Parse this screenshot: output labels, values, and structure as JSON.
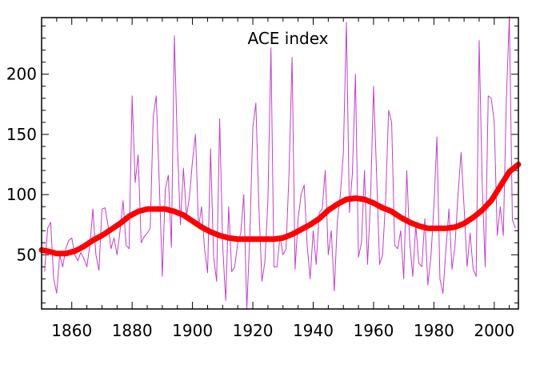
{
  "chart_data": {
    "type": "line",
    "title": "ACE index",
    "xlabel": "",
    "ylabel": "",
    "xlim": [
      1850,
      2008
    ],
    "ylim": [
      5,
      247
    ],
    "grid": false,
    "xticks": [
      1860,
      1880,
      1900,
      1920,
      1940,
      1960,
      1980,
      2000
    ],
    "xtick_labels": [
      "1860",
      "1880",
      "1900",
      "1920",
      "1940",
      "1960",
      "1980",
      "2000"
    ],
    "yticks": [
      50,
      100,
      150,
      200
    ],
    "ytick_labels": [
      "50",
      "100",
      "150",
      "200"
    ],
    "colors": {
      "annual": "#c040c8",
      "smoothed": "#ff0000",
      "axis": "#000000"
    },
    "series": [
      {
        "x": [
          1851,
          1852,
          1853,
          1854,
          1855,
          1856,
          1857,
          1858,
          1859,
          1860,
          1861,
          1862,
          1863,
          1864,
          1865,
          1866,
          1867,
          1868,
          1869,
          1870,
          1871,
          1872,
          1873,
          1874,
          1875,
          1876,
          1877,
          1878,
          1879,
          1880,
          1881,
          1882,
          1883,
          1884,
          1885,
          1886,
          1887,
          1888,
          1889,
          1890,
          1891,
          1892,
          1893,
          1894,
          1895,
          1896,
          1897,
          1898,
          1899,
          1900,
          1901,
          1902,
          1903,
          1904,
          1905,
          1906,
          1907,
          1908,
          1909,
          1910,
          1911,
          1912,
          1913,
          1914,
          1915,
          1916,
          1917,
          1918,
          1919,
          1920,
          1921,
          1922,
          1923,
          1924,
          1925,
          1926,
          1927,
          1928,
          1929,
          1930,
          1931,
          1932,
          1933,
          1934,
          1935,
          1936,
          1937,
          1938,
          1939,
          1940,
          1941,
          1942,
          1943,
          1944,
          1945,
          1946,
          1947,
          1948,
          1949,
          1950,
          1951,
          1952,
          1953,
          1954,
          1955,
          1956,
          1957,
          1958,
          1959,
          1960,
          1961,
          1962,
          1963,
          1964,
          1965,
          1966,
          1967,
          1968,
          1969,
          1970,
          1971,
          1972,
          1973,
          1974,
          1975,
          1976,
          1977,
          1978,
          1979,
          1980,
          1981,
          1982,
          1983,
          1984,
          1985,
          1986,
          1987,
          1988,
          1989,
          1990,
          1991,
          1992,
          1993,
          1994,
          1995,
          1996,
          1997,
          1998,
          1999,
          2000,
          2001,
          2002,
          2003,
          2004,
          2005,
          2006,
          2007
        ],
        "values": [
          36,
          72,
          77,
          30,
          18,
          50,
          40,
          55,
          62,
          64,
          50,
          45,
          52,
          47,
          40,
          58,
          88,
          50,
          37,
          88,
          89,
          75,
          55,
          64,
          50,
          70,
          95,
          58,
          55,
          182,
          110,
          133,
          60,
          65,
          68,
          72,
          165,
          182,
          110,
          32,
          105,
          116,
          56,
          232,
          140,
          75,
          122,
          82,
          98,
          128,
          150,
          72,
          90,
          55,
          35,
          138,
          48,
          28,
          163,
          58,
          12,
          90,
          36,
          40,
          60,
          68,
          100,
          5,
          66,
          156,
          176,
          90,
          28,
          44,
          95,
          222,
          40,
          40,
          65,
          50,
          55,
          118,
          214,
          38,
          80,
          100,
          108,
          58,
          30,
          70,
          42,
          85,
          88,
          120,
          50,
          70,
          20,
          78,
          100,
          135,
          243,
          85,
          118,
          200,
          48,
          60,
          120,
          42,
          95,
          190,
          118,
          42,
          50,
          96,
          170,
          160,
          58,
          55,
          70,
          30,
          120,
          60,
          32,
          75,
          43,
          40,
          80,
          25,
          48,
          90,
          148,
          30,
          18,
          55,
          88,
          38,
          58,
          100,
          135,
          90,
          40,
          68,
          38,
          32,
          228,
          110,
          40,
          182,
          180,
          160,
          66,
          90,
          66,
          178,
          248,
          79,
          72
        ]
      },
      {
        "x": [
          1850,
          1852,
          1855,
          1858,
          1861,
          1864,
          1867,
          1870,
          1873,
          1876,
          1879,
          1882,
          1885,
          1888,
          1891,
          1894,
          1897,
          1900,
          1903,
          1906,
          1909,
          1912,
          1915,
          1918,
          1921,
          1924,
          1927,
          1930,
          1933,
          1936,
          1939,
          1942,
          1945,
          1948,
          1951,
          1954,
          1957,
          1960,
          1963,
          1966,
          1969,
          1972,
          1975,
          1978,
          1981,
          1984,
          1987,
          1990,
          1993,
          1996,
          1999,
          2002,
          2005,
          2008
        ],
        "values": [
          54,
          53,
          51,
          51,
          53,
          57,
          62,
          66,
          71,
          76,
          82,
          86,
          88,
          88,
          88,
          86,
          83,
          78,
          73,
          69,
          66,
          64,
          63,
          63,
          63,
          63,
          63,
          64,
          67,
          71,
          75,
          80,
          87,
          92,
          96,
          97,
          96,
          93,
          89,
          86,
          81,
          77,
          74,
          72,
          72,
          72,
          73,
          76,
          81,
          87,
          95,
          107,
          119,
          125
        ]
      }
    ]
  }
}
